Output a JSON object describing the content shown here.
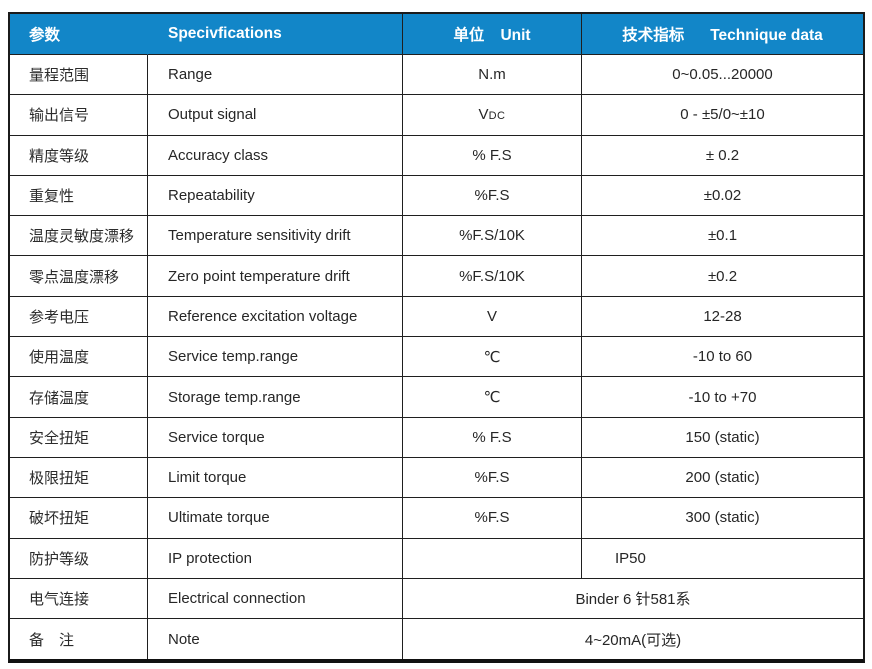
{
  "table": {
    "title_semantic": "torque-sensor-specification-table",
    "colors": {
      "header_bg": "#1286c8",
      "header_text": "#ffffff",
      "border": "#1f1f1f",
      "body_text": "#262626"
    },
    "header": {
      "param_cn": "参数",
      "spec_en": "Specivfications",
      "unit_cn": "单位",
      "unit_en": "Unit",
      "tech_cn": "技术指标",
      "tech_en": "Technique data"
    },
    "rows": [
      {
        "cn": "量程范围",
        "en": "Range",
        "unit": "N.m",
        "value": "0~0.05...20000"
      },
      {
        "cn": "输出信号",
        "en": "Output signal",
        "unit": "V",
        "unit_sub": "DC",
        "value": "0 - ±5/0~±10"
      },
      {
        "cn": "精度等级",
        "en": "Accuracy class",
        "unit": "% F.S",
        "value": "± 0.2"
      },
      {
        "cn": "重复性",
        "en": "Repeatability",
        "unit": "%F.S",
        "value": "±0.02"
      },
      {
        "cn": "温度灵敏度漂移",
        "en": "Temperature sensitivity drift",
        "unit": "%F.S/10K",
        "value": "±0.1"
      },
      {
        "cn": "零点温度漂移",
        "en": "Zero point temperature drift",
        "unit": "%F.S/10K",
        "value": "±0.2"
      },
      {
        "cn": "参考电压",
        "en": "Reference excitation voltage",
        "unit": "V",
        "value": "12-28"
      },
      {
        "cn": "使用温度",
        "en": "Service temp.range",
        "unit": "℃",
        "value": "-10 to 60"
      },
      {
        "cn": "存储温度",
        "en": "Storage temp.range",
        "unit": "℃",
        "value": "-10 to +70"
      },
      {
        "cn": "安全扭矩",
        "en": "Service torque",
        "unit": "% F.S",
        "value": "150 (static)"
      },
      {
        "cn": "极限扭矩",
        "en": "Limit torque",
        "unit": "%F.S",
        "value": "200 (static)"
      },
      {
        "cn": "破坏扭矩",
        "en": "Ultimate torque",
        "unit": "%F.S",
        "value": "300 (static)"
      },
      {
        "cn": "防护等级",
        "en": "IP protection",
        "unit": "",
        "value": "IP50"
      },
      {
        "cn": "电气连接",
        "en": "Electrical connection",
        "value_merged": "Binder 6 针581系"
      },
      {
        "cn": "备　注",
        "en": "Note",
        "value_merged": "4~20mA(可选)"
      }
    ]
  }
}
